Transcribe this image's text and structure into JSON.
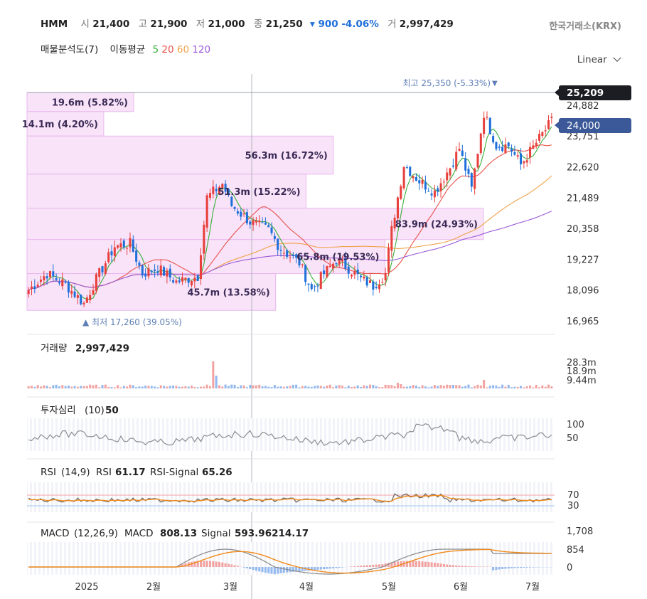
{
  "header": {
    "symbol": "HMM",
    "open_label": "시",
    "open": "21,400",
    "high_label": "고",
    "high": "21,900",
    "low_label": "저",
    "low": "21,000",
    "close_label": "종",
    "close": "21,250",
    "change": "▾ 900 -4.06%",
    "volume_label": "거",
    "volume": "2,997,429",
    "exchange": "한국거래소(KRX)"
  },
  "subheader": {
    "profile_label": "매물분석도(7)",
    "ma_label": "이동평균",
    "ma_periods": [
      "5",
      "20",
      "60",
      "120"
    ]
  },
  "scale_toggle": "Linear",
  "colors": {
    "up": "#e8403c",
    "down": "#1e6fd9",
    "ma5": "#3aae3a",
    "ma20": "#e8514a",
    "ma60": "#f0a24a",
    "ma120": "#9a5ad9",
    "profile": "#f8e3f8",
    "rsi_signal": "#f08a1a"
  },
  "chart_data": [
    {
      "type": "candlestick",
      "title": "HMM",
      "y_ticks": [
        "24,882",
        "23,751",
        "22,620",
        "21,489",
        "20,358",
        "19,227",
        "18,096",
        "16,965"
      ],
      "ylim": [
        16965,
        25500
      ],
      "x_ticks": [
        "2025",
        "2월",
        "3월",
        "4월",
        "5월",
        "6월",
        "7월"
      ],
      "price_tags": [
        "25,209",
        "24,000"
      ],
      "annotations": {
        "high": "최고 25,350 (-5.33%)",
        "low": "▲ 최저 17,260 (39.05%)"
      },
      "volume_profile": [
        {
          "range": [
            24650,
            25350
          ],
          "label": "19.6m (5.82%)",
          "value": 19.6
        },
        {
          "range": [
            23750,
            24650
          ],
          "label": "14.1m (4.20%)",
          "value": 14.1
        },
        {
          "range": [
            22350,
            23750
          ],
          "label": "56.3m (16.72%)",
          "value": 56.3
        },
        {
          "range": [
            21100,
            22350
          ],
          "label": "51.3m (15.22%)",
          "value": 51.3
        },
        {
          "range": [
            19950,
            21100
          ],
          "label": "83.9m (24.93%)",
          "value": 83.9
        },
        {
          "range": [
            18700,
            19950
          ],
          "label": "65.8m (19.53%)",
          "value": 65.8
        },
        {
          "range": [
            17350,
            18700
          ],
          "label": "45.7m (13.58%)",
          "value": 45.7
        }
      ],
      "moving_averages": [
        "5",
        "20",
        "60",
        "120"
      ]
    },
    {
      "type": "bar",
      "title": "거래량",
      "last_value": "2,997,429",
      "y_ticks": [
        "28.3m",
        "18.9m",
        "9.44m"
      ]
    },
    {
      "type": "line",
      "title": "투자심리",
      "params": "(10)",
      "last_value": "50",
      "y_ticks": [
        "100",
        "50"
      ]
    },
    {
      "type": "line",
      "title": "RSI",
      "params": "(14,9)",
      "series": [
        {
          "name": "RSI",
          "last": "61.17"
        },
        {
          "name": "RSI-Signal",
          "last": "65.26"
        }
      ],
      "y_ticks": [
        "70",
        "30"
      ]
    },
    {
      "type": "line",
      "title": "MACD",
      "params": "(12,26,9)",
      "series": [
        {
          "name": "MACD",
          "last": "808.13"
        },
        {
          "name": "Signal",
          "last": "593.96214.17"
        }
      ],
      "y_ticks": [
        "1,708",
        "854",
        "0"
      ]
    }
  ]
}
